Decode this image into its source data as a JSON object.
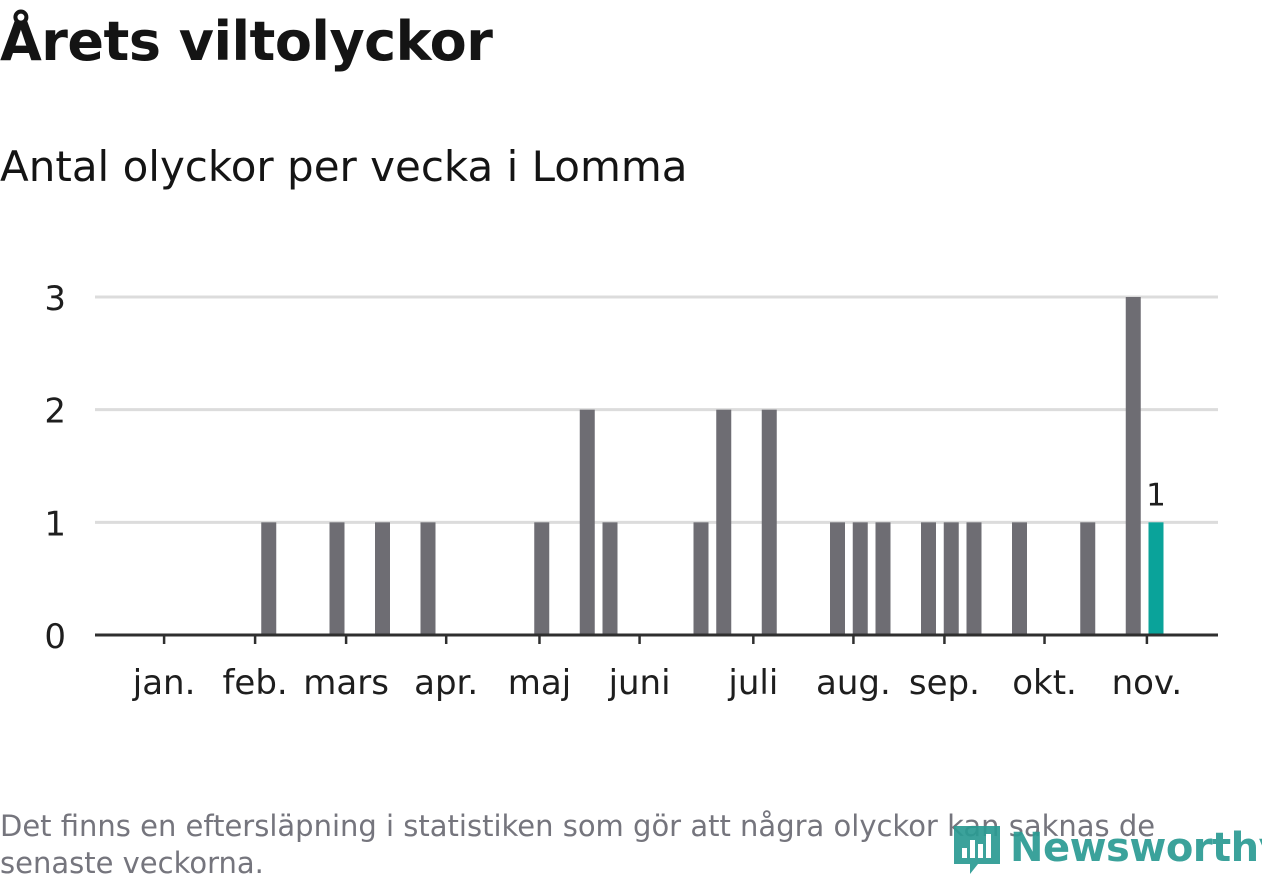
{
  "title": "Årets viltolyckor",
  "subtitle": "Antal olyckor per vecka i Lomma",
  "footnote": "Det finns en eftersläpning i statistiken som gör att några olyckor kan saknas de senaste veckorna.",
  "logo": {
    "text": "Newsworthy",
    "color": "#2b9b93",
    "icon": "bar-chart-speech-bubble-icon"
  },
  "colors": {
    "bar": "#6e6d73",
    "highlight": "#0aa39a",
    "grid": "#dcdcdc",
    "axis": "#2f2f2f",
    "text": "#1e1e1e"
  },
  "chart_data": {
    "type": "bar",
    "title": "Antal olyckor per vecka i Lomma",
    "xlabel": "",
    "ylabel": "",
    "x_unit": "vecka",
    "weeks": [
      1,
      2,
      3,
      4,
      5,
      6,
      7,
      8,
      9,
      10,
      11,
      12,
      13,
      14,
      15,
      16,
      17,
      18,
      19,
      20,
      21,
      22,
      23,
      24,
      25,
      26,
      27,
      28,
      29,
      30,
      31,
      32,
      33,
      34,
      35,
      36,
      37,
      38,
      39,
      40,
      41,
      42,
      43,
      44,
      45
    ],
    "values": [
      0,
      0,
      0,
      0,
      0,
      1,
      0,
      0,
      1,
      0,
      1,
      0,
      1,
      0,
      0,
      0,
      0,
      1,
      0,
      2,
      1,
      0,
      0,
      0,
      1,
      2,
      0,
      2,
      0,
      0,
      1,
      1,
      1,
      0,
      1,
      1,
      1,
      0,
      1,
      0,
      0,
      1,
      0,
      3,
      1
    ],
    "highlight_week": 45,
    "highlight_label": "1",
    "ylim": [
      0,
      3
    ],
    "yticks": [
      0,
      1,
      2,
      3
    ],
    "month_ticks": [
      {
        "label": "jan.",
        "week": 1.4
      },
      {
        "label": "feb.",
        "week": 5.4
      },
      {
        "label": "mars",
        "week": 9.4
      },
      {
        "label": "apr.",
        "week": 13.8
      },
      {
        "label": "maj",
        "week": 17.9
      },
      {
        "label": "juni",
        "week": 22.3
      },
      {
        "label": "juli",
        "week": 27.3
      },
      {
        "label": "aug.",
        "week": 31.7
      },
      {
        "label": "sep.",
        "week": 35.7
      },
      {
        "label": "okt.",
        "week": 40.1
      },
      {
        "label": "nov.",
        "week": 44.6
      }
    ],
    "grid": true,
    "legend": "none"
  }
}
